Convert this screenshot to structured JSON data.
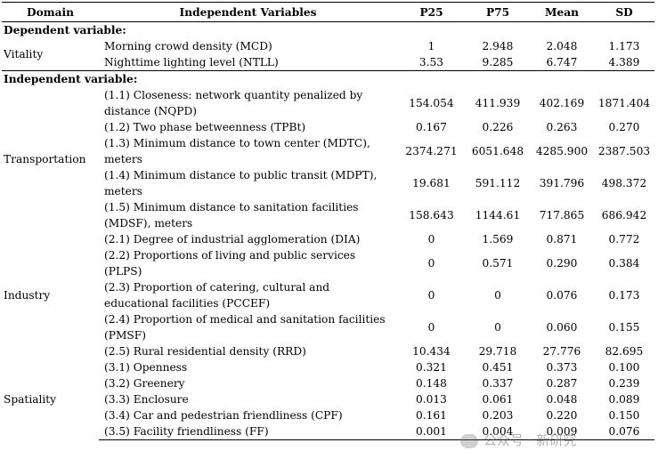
{
  "header": {
    "domain": "Domain",
    "variables": "Independent Variables",
    "p25": "P25",
    "p75": "P75",
    "mean": "Mean",
    "sd": "SD"
  },
  "dependent": {
    "section_label": "Dependent variable:",
    "domain": "Vitality",
    "rows": [
      {
        "name": "Morning crowd density (MCD)",
        "p25": "1",
        "p75": "2.948",
        "mean": "2.048",
        "sd": "1.173"
      },
      {
        "name": "Nighttime lighting level (NTLL)",
        "p25": "3.53",
        "p75": "9.285",
        "mean": "6.747",
        "sd": "4.389"
      }
    ]
  },
  "independent": {
    "section_label": "Independent variable:",
    "transportation": {
      "domain": "Transportation",
      "rows": [
        {
          "name": "(1.1) Closeness: network quantity penalized by distance (NQPD)",
          "p25": "154.054",
          "p75": "411.939",
          "mean": "402.169",
          "sd": "1871.404"
        },
        {
          "name": "(1.2) Two phase betweenness (TPBt)",
          "p25": "0.167",
          "p75": "0.226",
          "mean": "0.263",
          "sd": "0.270"
        },
        {
          "name": "(1.3) Minimum distance to town center (MDTC), meters",
          "p25": "2374.271",
          "p75": "6051.648",
          "mean": "4285.900",
          "sd": "2387.503"
        },
        {
          "name": "(1.4) Minimum distance to public transit (MDPT), meters",
          "p25": "19.681",
          "p75": "591.112",
          "mean": "391.796",
          "sd": "498.372"
        },
        {
          "name": "(1.5) Minimum distance to sanitation facilities (MDSF), meters",
          "p25": "158.643",
          "p75": "1144.61",
          "mean": "717.865",
          "sd": "686.942"
        }
      ]
    },
    "industry": {
      "domain": "Industry",
      "rows": [
        {
          "name": "(2.1) Degree of industrial agglomeration (DIA)",
          "p25": "0",
          "p75": "1.569",
          "mean": "0.871",
          "sd": "0.772"
        },
        {
          "name": "(2.2) Proportions of living and public services (PLPS)",
          "p25": "0",
          "p75": "0.571",
          "mean": "0.290",
          "sd": "0.384"
        },
        {
          "name": "(2.3) Proportion of catering, cultural and educational facilities (PCCEF)",
          "p25": "0",
          "p75": "0",
          "mean": "0.076",
          "sd": "0.173"
        },
        {
          "name": "(2.4) Proportion of medical and sanitation facilities (PMSF)",
          "p25": "0",
          "p75": "0",
          "mean": "0.060",
          "sd": "0.155"
        },
        {
          "name": "(2.5) Rural residential density (RRD)",
          "p25": "10.434",
          "p75": "29.718",
          "mean": "27.776",
          "sd": "82.695"
        }
      ]
    },
    "spatiality": {
      "domain": "Spatiality",
      "rows": [
        {
          "name": "(3.1) Openness",
          "p25": "0.321",
          "p75": "0.451",
          "mean": "0.373",
          "sd": "0.100"
        },
        {
          "name": "(3.2) Greenery",
          "p25": "0.148",
          "p75": "0.337",
          "mean": "0.287",
          "sd": "0.239"
        },
        {
          "name": "(3.3) Enclosure",
          "p25": "0.013",
          "p75": "0.061",
          "mean": "0.048",
          "sd": "0.089"
        },
        {
          "name": "(3.4) Car and pedestrian friendliness (CPF)",
          "p25": "0.161",
          "p75": "0.203",
          "mean": "0.220",
          "sd": "0.150"
        },
        {
          "name": "(3.5) Facility friendliness (FF)",
          "p25": "0.001",
          "p75": "0.004",
          "mean": "0.009",
          "sd": "0.076"
        }
      ]
    }
  },
  "watermark": "公众号 · 新研究"
}
